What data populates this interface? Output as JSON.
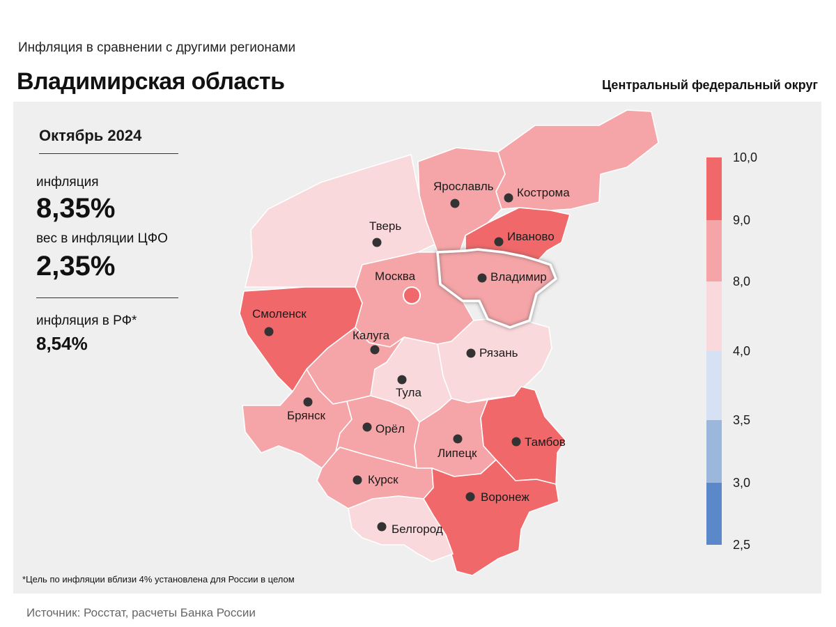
{
  "header": {
    "subtitle": "Инфляция в сравнении с другими регионами",
    "title": "Владимирская область",
    "district": "Центральный федеральный округ"
  },
  "stats": {
    "period": "Октябрь 2024",
    "inflation_label": "инфляция",
    "inflation_value": "8,35%",
    "weight_label": "вес в инфляции ЦФО",
    "weight_value": "2,35%",
    "rf_label": "инфляция в РФ*",
    "rf_value": "8,54%"
  },
  "footnote": "*Цель по инфляции вблизи 4% установлена для России в целом",
  "source": "Источник: Росстат, расчеты Банка России",
  "legend": {
    "ticks": [
      "10,0",
      "9,0",
      "8,0",
      "4,0",
      "3,5",
      "3,0",
      "2,5"
    ],
    "bins": [
      {
        "from": 9.0,
        "to": 10.0,
        "color": "#f0686a"
      },
      {
        "from": 8.0,
        "to": 9.0,
        "color": "#f5a5a7"
      },
      {
        "from": 4.0,
        "to": 8.0,
        "color": "#f9d9dc"
      },
      {
        "from": 3.5,
        "to": 4.0,
        "color": "#d6e2f3"
      },
      {
        "from": 3.0,
        "to": 3.5,
        "color": "#9bb8dc"
      },
      {
        "from": 2.5,
        "to": 3.0,
        "color": "#5b88c8"
      }
    ]
  },
  "highlight_region": "Владимир",
  "regions": [
    {
      "name": "Ярославль",
      "bin": "8.0-9.0"
    },
    {
      "name": "Кострома",
      "bin": "8.0-9.0"
    },
    {
      "name": "Тверь",
      "bin": "4.0-8.0"
    },
    {
      "name": "Иваново",
      "bin": "9.0-10.0"
    },
    {
      "name": "Москва",
      "bin": "8.0-9.0"
    },
    {
      "name": "Владимир",
      "bin": "8.0-9.0"
    },
    {
      "name": "Смоленск",
      "bin": "9.0-10.0"
    },
    {
      "name": "Калуга",
      "bin": "8.0-9.0"
    },
    {
      "name": "Рязань",
      "bin": "4.0-8.0"
    },
    {
      "name": "Тула",
      "bin": "4.0-8.0"
    },
    {
      "name": "Брянск",
      "bin": "8.0-9.0"
    },
    {
      "name": "Орёл",
      "bin": "8.0-9.0"
    },
    {
      "name": "Липецк",
      "bin": "8.0-9.0"
    },
    {
      "name": "Тамбов",
      "bin": "9.0-10.0"
    },
    {
      "name": "Курск",
      "bin": "8.0-9.0"
    },
    {
      "name": "Воронеж",
      "bin": "9.0-10.0"
    },
    {
      "name": "Белгород",
      "bin": "4.0-8.0"
    }
  ]
}
